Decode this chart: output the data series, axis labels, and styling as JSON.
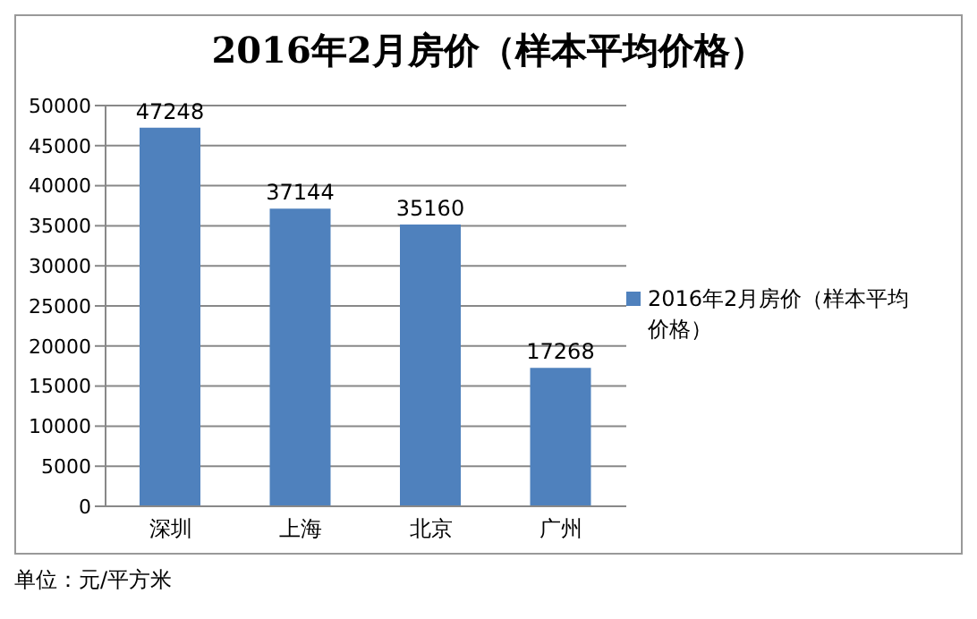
{
  "chart_data": {
    "type": "bar",
    "title": "2016年2月房价（样本平均价格）",
    "categories": [
      "深圳",
      "上海",
      "北京",
      "广州"
    ],
    "series": [
      {
        "name": "2016年2月房价（样本平均价格）",
        "color": "#4f81bd",
        "values": [
          47248,
          37144,
          35160,
          17268
        ]
      }
    ],
    "ylim": [
      0,
      50000
    ],
    "yticks": [
      0,
      5000,
      10000,
      15000,
      20000,
      25000,
      30000,
      35000,
      40000,
      45000,
      50000
    ],
    "grid": "y",
    "legend": "right",
    "data_labels": true,
    "annotations": [
      "单位：元/平方米"
    ]
  }
}
